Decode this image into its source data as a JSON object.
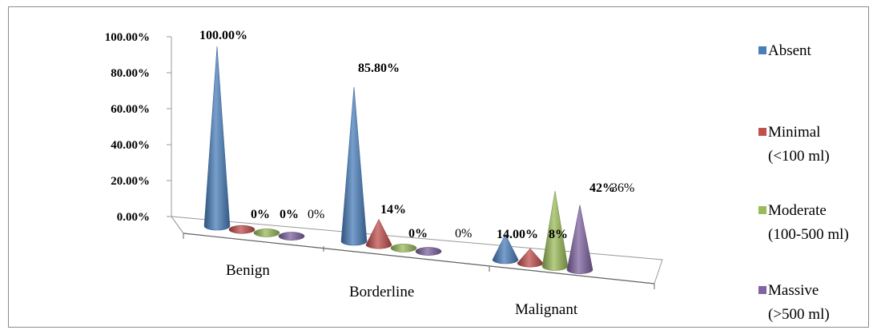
{
  "chart_data": {
    "type": "bar",
    "style": "3d-cone",
    "categories": [
      "Benign",
      "Borderline",
      "Malignant"
    ],
    "y_ticks": [
      "0.00%",
      "20.00%",
      "40.00%",
      "60.00%",
      "80.00%",
      "100.00%"
    ],
    "ylim": [
      0,
      100
    ],
    "grid": false,
    "legend_position": "right",
    "series": [
      {
        "name": "Absent",
        "legend_lines": [
          "Absent"
        ],
        "color": "#4a7ebb",
        "values": [
          100,
          85.8,
          14
        ],
        "labels": [
          "100.00%",
          "85.80%",
          "14.00%"
        ],
        "bold": [
          true,
          true,
          true
        ]
      },
      {
        "name": "Minimal (<100 ml)",
        "legend_lines": [
          "Minimal",
          "(<100 ml)"
        ],
        "color": "#c0504d",
        "values": [
          0,
          14,
          8
        ],
        "labels": [
          "0%",
          "14%",
          "8%"
        ],
        "bold": [
          true,
          true,
          true
        ]
      },
      {
        "name": "Moderate (100-500 ml)",
        "legend_lines": [
          "Moderate",
          "(100-500 ml)"
        ],
        "color": "#9bbb59",
        "values": [
          0,
          0,
          42
        ],
        "labels": [
          "0%",
          "0%",
          "42%"
        ],
        "bold": [
          true,
          true,
          true
        ]
      },
      {
        "name": "Massive (>500 ml)",
        "legend_lines": [
          "Massive",
          "(>500 ml)"
        ],
        "color": "#8064a2",
        "values": [
          0,
          0,
          36
        ],
        "labels": [
          "0%",
          "0%",
          "36%"
        ],
        "bold": [
          false,
          false,
          false
        ]
      }
    ]
  }
}
